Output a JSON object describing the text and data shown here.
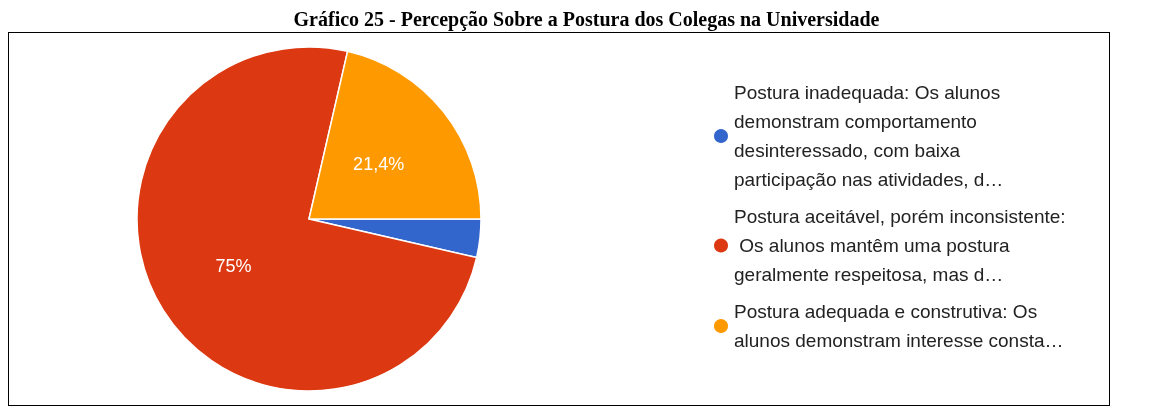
{
  "chart_data": {
    "type": "pie",
    "title": "Gráfico 25 - Percepção Sobre a Postura dos Colegas na Universidade",
    "categories": [
      "Postura inadequada: Os alunos demonstram comportamento desinteressado, com baixa participação nas atividades, d…",
      "Postura aceitável, porém inconsistente: Os alunos mantêm uma postura geralmente respeitosa, mas d…",
      "Postura adequada e construtiva: Os alunos demonstram interesse consta…"
    ],
    "values": [
      3.6,
      75,
      21.4
    ],
    "colors": [
      "#3366cc",
      "#dc3912",
      "#ff9900"
    ],
    "value_labels": [
      null,
      "75%",
      "21,4%"
    ],
    "legend": "right"
  }
}
